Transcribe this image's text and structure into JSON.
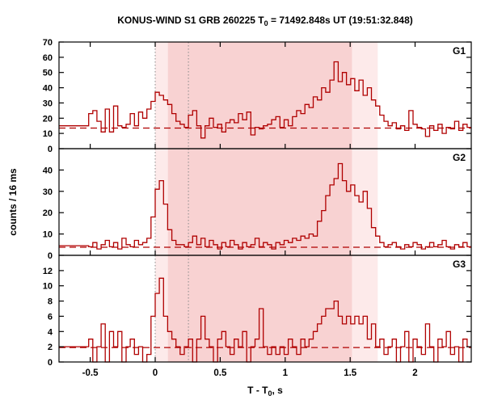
{
  "title": {
    "prefix": "KONUS-WIND S1 GRB 260225 T",
    "sub": "0",
    "suffix": " = 71492.848s UT (19:51:32.848)"
  },
  "xlabel": {
    "prefix": "T - T",
    "sub": "0",
    "suffix": ", s"
  },
  "ylabel": "counts / 16 ms",
  "chart_data": {
    "type": "step-histogram",
    "title": "KONUS-WIND S1 GRB 260225 T0 = 71492.848s UT (19:51:32.848)",
    "xlabel": "T - T0, s",
    "ylabel": "counts / 16 ms",
    "xlim": [
      -0.74,
      2.432
    ],
    "x_start": -0.512,
    "bin_width": 0.032,
    "xticks": [
      -0.5,
      0,
      0.5,
      1,
      1.5,
      2
    ],
    "xtick_labels": [
      "-0.5",
      "0",
      "0.5",
      "1",
      "1.5",
      "2"
    ],
    "vlines": [
      0,
      0.256
    ],
    "vline_color": "#8a8a8a",
    "line_color": "#b00000",
    "axis_color": "#000000",
    "bands": [
      {
        "from": 0.0,
        "to": 1.712,
        "color": "#fdeaea"
      },
      {
        "from": 0.098,
        "to": 1.514,
        "color": "#f8d2d2"
      }
    ],
    "panels": [
      {
        "label": "G1",
        "ylim": [
          0,
          70
        ],
        "yticks": [
          0,
          10,
          20,
          30,
          40,
          50,
          60,
          70
        ],
        "background_level": 13.5,
        "pre_value": 15,
        "values": [
          23,
          25,
          18,
          11,
          26,
          11,
          28,
          15,
          14,
          16,
          23,
          15,
          24,
          20,
          26,
          31,
          37,
          35,
          32,
          29,
          23,
          18,
          16,
          14,
          22,
          25,
          15,
          7,
          15,
          20,
          14,
          16,
          11,
          17,
          19,
          17,
          23,
          19,
          24,
          9,
          14,
          13,
          15,
          16,
          19,
          21,
          14,
          19,
          15,
          21,
          25,
          23,
          29,
          27,
          34,
          32,
          40,
          37,
          45,
          57,
          44,
          50,
          42,
          46,
          38,
          45,
          35,
          40,
          32,
          28,
          22,
          18,
          15,
          17,
          13,
          15,
          12,
          25,
          16,
          14,
          13,
          8,
          15,
          12,
          16,
          10,
          14,
          13,
          18,
          12,
          16,
          14
        ]
      },
      {
        "label": "G2",
        "ylim": [
          0,
          50
        ],
        "yticks": [
          0,
          10,
          20,
          30,
          40
        ],
        "background_level": 3.8,
        "pre_value": 4.5,
        "values": [
          4,
          6,
          3,
          5,
          7,
          4,
          6,
          3,
          8,
          5,
          4,
          7,
          5,
          6,
          8,
          18,
          31,
          35,
          24,
          12,
          7,
          5,
          5,
          4,
          6,
          9,
          5,
          8,
          4,
          7,
          5,
          3,
          6,
          4,
          7,
          5,
          3,
          6,
          4,
          5,
          8,
          4,
          6,
          5,
          3,
          6,
          5,
          7,
          6,
          8,
          7,
          9,
          8,
          10,
          9,
          16,
          21,
          28,
          33,
          36,
          43,
          35,
          30,
          33,
          28,
          25,
          30,
          22,
          13,
          9,
          6,
          4,
          5,
          6,
          4,
          3,
          5,
          4,
          6,
          5,
          3,
          4,
          6,
          4,
          5,
          7,
          4,
          3,
          5,
          4,
          6,
          4
        ]
      },
      {
        "label": "G3",
        "ylim": [
          0,
          14
        ],
        "yticks": [
          0,
          2,
          4,
          6,
          8,
          10,
          12
        ],
        "background_level": 1.9,
        "pre_value": 2,
        "values": [
          3,
          0,
          2,
          5,
          0,
          4,
          2,
          4,
          0,
          2,
          3,
          1,
          2,
          0,
          1,
          6,
          9,
          11,
          6,
          4,
          3,
          2,
          1,
          2,
          3,
          0,
          3,
          6,
          3,
          2,
          0,
          3,
          4,
          2,
          1,
          3,
          2,
          4,
          0,
          2,
          3,
          7,
          2,
          1,
          2,
          1,
          2,
          1,
          3,
          2,
          1,
          3,
          2,
          3,
          4,
          5,
          6,
          7,
          7,
          8,
          6,
          5,
          6,
          5,
          6,
          5,
          6,
          3,
          5,
          2,
          3,
          1,
          2,
          3,
          0,
          2,
          4,
          0,
          3,
          2,
          1,
          5,
          2,
          0,
          3,
          2,
          4,
          1,
          2,
          0,
          3,
          2
        ]
      }
    ]
  }
}
